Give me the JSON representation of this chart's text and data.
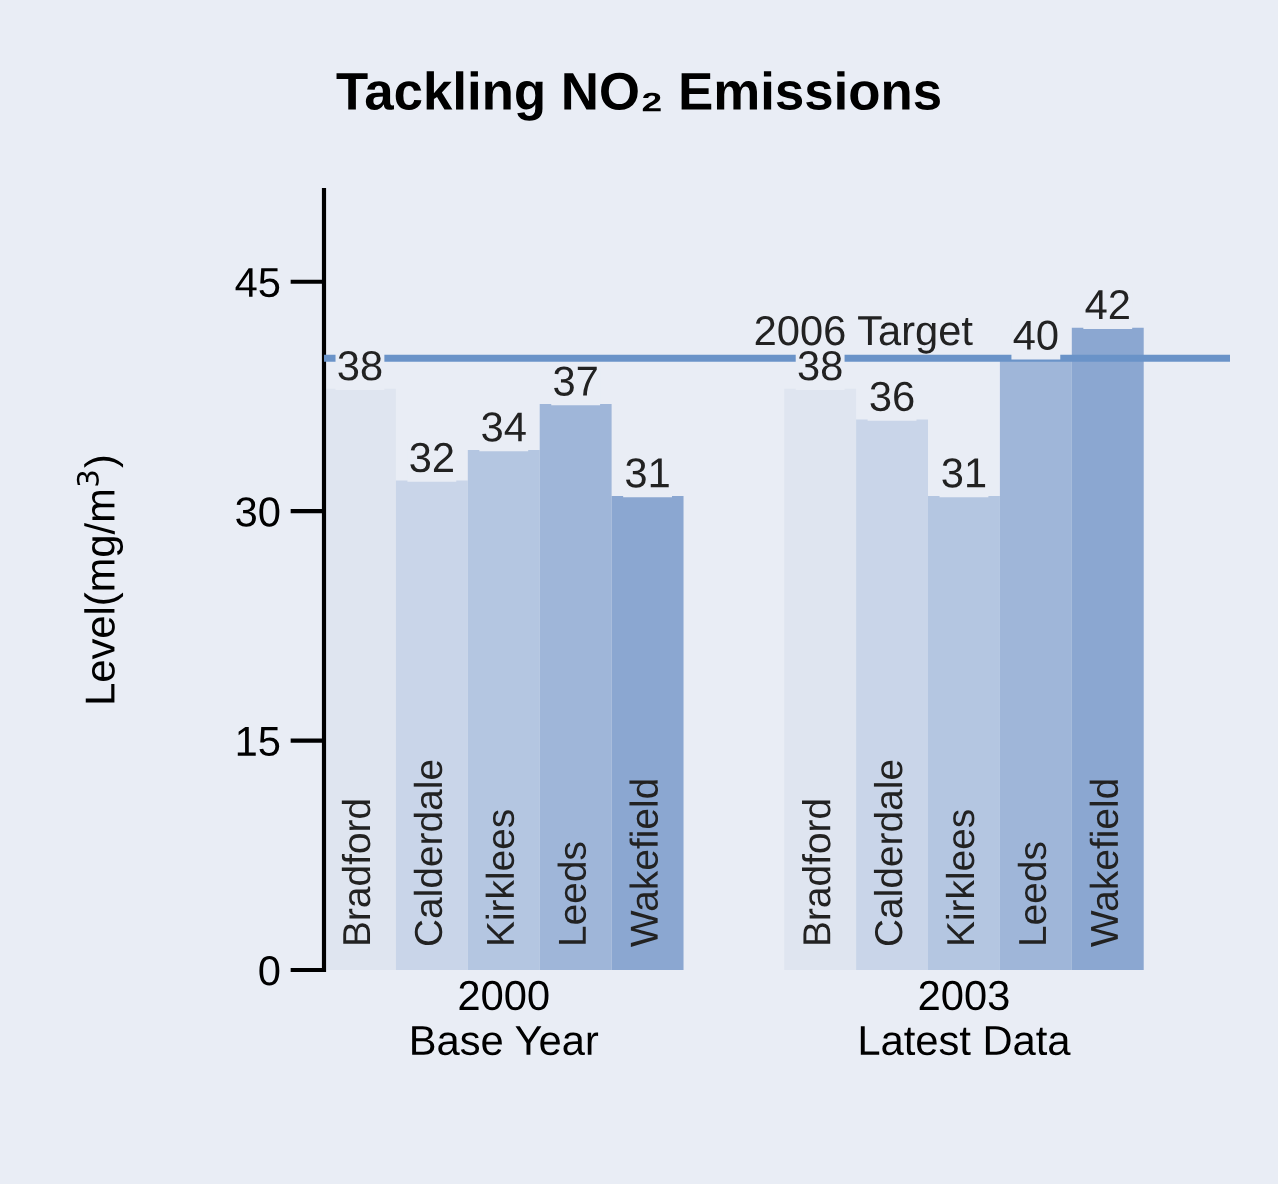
{
  "chart_data": {
    "type": "bar",
    "title": "Tackling NO₂ Emissions",
    "ylabel": "Level(mg/m$^{3}$)",
    "categories": [
      "2000\nBase Year",
      "2003\nLatest Data"
    ],
    "series": [
      {
        "name": "Bradford",
        "color": "#dfe5f0",
        "values": [
          38,
          38
        ]
      },
      {
        "name": "Calderdale",
        "color": "#c9d5e9",
        "values": [
          32,
          36
        ]
      },
      {
        "name": "Kirklees",
        "color": "#b4c6e1",
        "values": [
          34,
          31
        ]
      },
      {
        "name": "Leeds",
        "color": "#9fb6d9",
        "values": [
          37,
          40
        ]
      },
      {
        "name": "Wakefield",
        "color": "#8ba7d1",
        "values": [
          31,
          42
        ]
      }
    ],
    "ylim": [
      0,
      51
    ],
    "yticks": [
      0,
      15,
      30,
      45
    ],
    "data_labels": true,
    "grid": false,
    "legend": false,
    "ref_lines": [
      {
        "axis": "y",
        "value": 40,
        "label": "2006 Target",
        "color": "#6a93c8"
      }
    ]
  }
}
